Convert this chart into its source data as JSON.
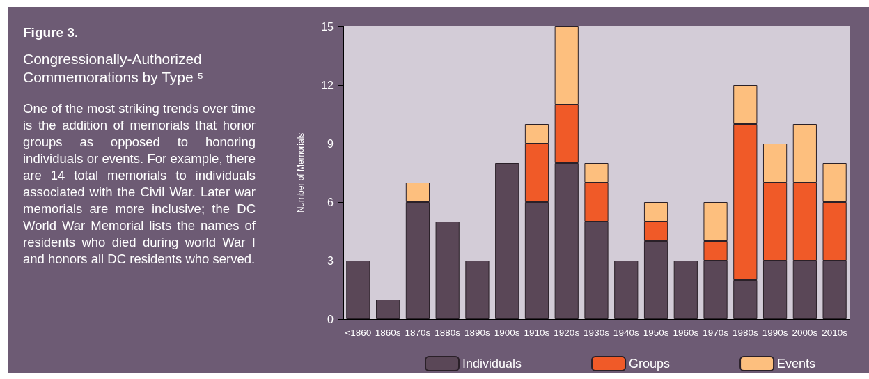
{
  "chart_data": {
    "type": "bar",
    "title": "Figure 3.",
    "subtitle": "Congressionally-Authorized Commemorations by Type ⁵",
    "annotations": [
      "One of the most striking trends over time is the addition of memorials that honor groups as opposed to honoring individuals or events. For example, there are 14 total memorials to individuals associated with the Civil War. Later war memorials are more inclusive; the DC World War Memorial lists the names of residents who died during world War I and honors all DC residents who served."
    ],
    "ylabel": "Number of Memorials",
    "categories": [
      "<1860",
      "1860s",
      "1870s",
      "1880s",
      "1890s",
      "1900s",
      "1910s",
      "1920s",
      "1930s",
      "1940s",
      "1950s",
      "1960s",
      "1970s",
      "1980s",
      "1990s",
      "2000s",
      "2010s"
    ],
    "stacked": true,
    "series": [
      {
        "name": "Individuals",
        "color": "#5a4757",
        "values": [
          3,
          1,
          6,
          5,
          3,
          8,
          6,
          8,
          5,
          3,
          4,
          3,
          3,
          2,
          3,
          3,
          3
        ]
      },
      {
        "name": "Groups",
        "color": "#f05a28",
        "values": [
          null,
          null,
          null,
          null,
          null,
          null,
          3,
          3,
          2,
          null,
          1,
          null,
          1,
          8,
          4,
          4,
          3
        ]
      },
      {
        "name": "Events",
        "color": "#fdbf7e",
        "values": [
          null,
          null,
          1,
          null,
          null,
          null,
          1,
          4,
          1,
          null,
          1,
          null,
          2,
          2,
          2,
          3,
          2
        ]
      }
    ],
    "ylim": [
      0,
      15
    ],
    "yticks": [
      0,
      3,
      6,
      9,
      12,
      15
    ],
    "grid": false,
    "legend": "bottom"
  }
}
